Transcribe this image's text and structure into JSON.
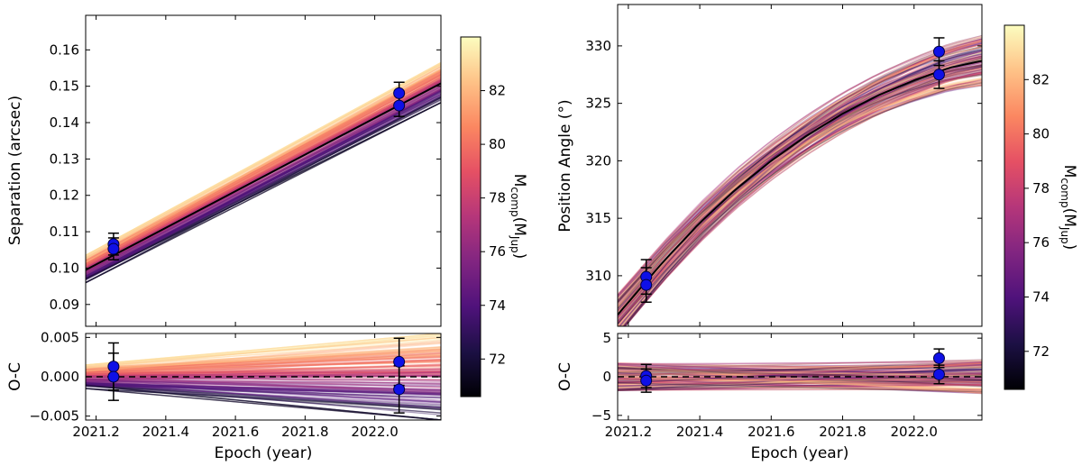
{
  "chart_data": [
    {
      "type": "line",
      "panel": "separation",
      "title": "",
      "xlabel": "",
      "ylabel": "Separation (arcsec)",
      "xlim": [
        2021.17,
        2022.19
      ],
      "ylim": [
        0.084,
        0.1695
      ],
      "yticks": [
        0.09,
        0.1,
        0.11,
        0.12,
        0.13,
        0.14,
        0.15,
        0.16
      ],
      "ytick_labels": [
        "0.09",
        "0.10",
        "0.11",
        "0.12",
        "0.13",
        "0.14",
        "0.15",
        "0.16"
      ],
      "best_fit": {
        "name": "best fit",
        "x": [
          2021.17,
          2022.19
        ],
        "y": [
          0.0995,
          0.1508
        ]
      },
      "data_points": [
        {
          "x": 2021.25,
          "y": 0.1066,
          "yerr": 0.003
        },
        {
          "x": 2021.25,
          "y": 0.1053,
          "yerr": 0.003
        },
        {
          "x": 2022.07,
          "y": 0.1481,
          "yerr": 0.003
        },
        {
          "x": 2022.07,
          "y": 0.1447,
          "yerr": 0.003
        }
      ],
      "orbit_fan": {
        "y_start_range": [
          0.096,
          0.1035
        ],
        "y_end_range": [
          0.1455,
          0.1565
        ]
      }
    },
    {
      "type": "line",
      "panel": "separation-residuals",
      "xlabel": "Epoch (year)",
      "ylabel": "O-C",
      "xlim": [
        2021.17,
        2022.19
      ],
      "ylim": [
        -0.0055,
        0.0055
      ],
      "xticks": [
        2021.2,
        2021.4,
        2021.6,
        2021.8,
        2022.0
      ],
      "xtick_labels": [
        "2021.2",
        "2021.4",
        "2021.6",
        "2021.8",
        "2022.0"
      ],
      "yticks": [
        -0.005,
        0.0,
        0.005
      ],
      "ytick_labels": [
        "−0.005",
        "0.000",
        "0.005"
      ],
      "zero_line": 0.0,
      "data_points": [
        {
          "x": 2021.25,
          "y": 0.0013,
          "yerr": 0.003
        },
        {
          "x": 2021.25,
          "y": 0.0,
          "yerr": 0.003
        },
        {
          "x": 2022.07,
          "y": 0.0019,
          "yerr": 0.003
        },
        {
          "x": 2022.07,
          "y": -0.0016,
          "yerr": 0.003
        }
      ],
      "orbit_fan": {
        "y_start_range": [
          -0.0015,
          0.0015
        ],
        "y_end_range": [
          -0.0055,
          0.0055
        ]
      }
    },
    {
      "type": "line",
      "panel": "position-angle",
      "xlabel": "",
      "ylabel": "Position Angle (°)",
      "xlim": [
        2021.17,
        2022.19
      ],
      "ylim": [
        305.6,
        333.6
      ],
      "yticks": [
        310,
        315,
        320,
        325,
        330
      ],
      "ytick_labels": [
        "310",
        "315",
        "320",
        "325",
        "330"
      ],
      "best_fit": {
        "name": "best fit",
        "x": [
          2021.17,
          2021.3,
          2021.4,
          2021.5,
          2021.6,
          2021.7,
          2021.8,
          2021.9,
          2022.0,
          2022.1,
          2022.19
        ],
        "y": [
          306.6,
          311.3,
          314.6,
          317.5,
          320.0,
          322.2,
          324.1,
          325.7,
          327.0,
          328.1,
          328.7
        ]
      },
      "data_points": [
        {
          "x": 2021.25,
          "y": 309.9,
          "yerr": 1.5
        },
        {
          "x": 2021.25,
          "y": 309.2,
          "yerr": 1.5
        },
        {
          "x": 2022.07,
          "y": 329.5,
          "yerr": 1.2
        },
        {
          "x": 2022.07,
          "y": 327.5,
          "yerr": 1.2
        }
      ],
      "orbit_fan": {
        "y_start_spread": 1.8,
        "y_end_spread": 2.2
      }
    },
    {
      "type": "line",
      "panel": "position-angle-residuals",
      "xlabel": "Epoch (year)",
      "ylabel": "O-C",
      "xlim": [
        2021.17,
        2022.19
      ],
      "ylim": [
        -5.6,
        5.6
      ],
      "xticks": [
        2021.2,
        2021.4,
        2021.6,
        2021.8,
        2022.0
      ],
      "xtick_labels": [
        "2021.2",
        "2021.4",
        "2021.6",
        "2021.8",
        "2022.0"
      ],
      "yticks": [
        -5,
        0,
        5
      ],
      "ytick_labels": [
        "−5",
        "0",
        "5"
      ],
      "zero_line": 0,
      "data_points": [
        {
          "x": 2021.25,
          "y": 0.1,
          "yerr": 1.5
        },
        {
          "x": 2021.25,
          "y": -0.5,
          "yerr": 1.5
        },
        {
          "x": 2022.07,
          "y": 2.4,
          "yerr": 1.2
        },
        {
          "x": 2022.07,
          "y": 0.3,
          "yerr": 1.2
        }
      ],
      "orbit_fan": {
        "y_start_spread": 1.8,
        "y_end_spread": 2.2
      }
    }
  ],
  "colorbar": {
    "label": "Mcomp(Mjup)",
    "label_main": "M",
    "label_sub": "comp",
    "label_open": "(M",
    "label_sub2": "Jup",
    "label_close": ")",
    "range": [
      70.6,
      84.0
    ],
    "ticks": [
      72,
      74,
      76,
      78,
      80,
      82
    ],
    "tick_labels": [
      "72",
      "74",
      "76",
      "78",
      "80",
      "82"
    ],
    "colormap": "magma",
    "stops": [
      "#000004",
      "#1c1044",
      "#4f127b",
      "#812581",
      "#b5367a",
      "#e55064",
      "#fb8761",
      "#fec287",
      "#fcfdbf"
    ]
  },
  "colors": {
    "best_fit": "#000000",
    "marker_fill": "#0f10e6",
    "marker_edge": "#000040",
    "zero_line": "#000000"
  }
}
